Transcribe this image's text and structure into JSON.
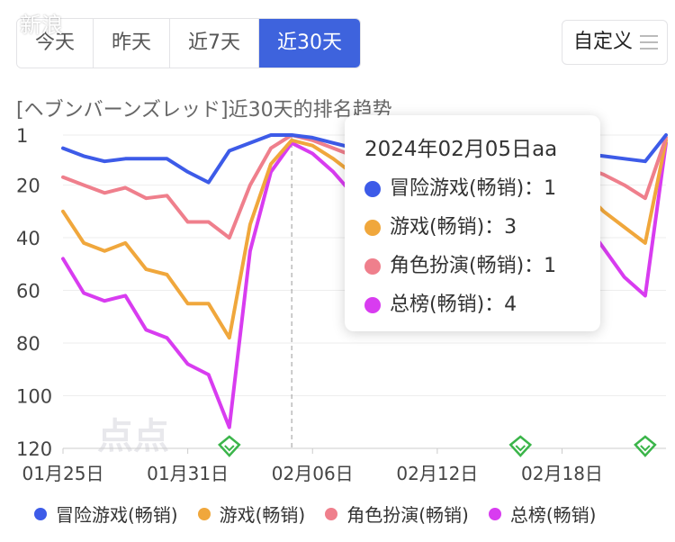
{
  "tabs": [
    "今天",
    "昨天",
    "近7天",
    "近30天"
  ],
  "active_tab": 3,
  "custom_button": "自定义",
  "chart_title": "[ヘブンバーンズレッド]近30天的排名趋势",
  "watermark": "新浪",
  "logo_text": "点点",
  "tooltip": {
    "date": "2024年02月05日aa",
    "rows": [
      {
        "label": "冒险游戏(畅销)：",
        "value": "1",
        "color": "#3d5be8"
      },
      {
        "label": "游戏(畅销)：",
        "value": "3",
        "color": "#f0a73c"
      },
      {
        "label": "角色扮演(畅销)：",
        "value": "1",
        "color": "#ef7f8c"
      },
      {
        "label": "总榜(畅销)：",
        "value": "4",
        "color": "#d83cf0"
      }
    ]
  },
  "chart_data": {
    "type": "line",
    "title": "[ヘブンバーンズレッド]近30天的排名趋势",
    "x": [
      "01月25日",
      "01月26日",
      "01月27日",
      "01月28日",
      "01月29日",
      "01月30日",
      "01月31日",
      "02月01日",
      "02月02日",
      "02月03日",
      "02月04日",
      "02月05日",
      "02月06日",
      "02月07日",
      "02月08日",
      "02月09日",
      "02月10日",
      "02月11日",
      "02月12日",
      "02月13日",
      "02月14日",
      "02月15日",
      "02月16日",
      "02月17日",
      "02月18日",
      "02月19日",
      "02月20日",
      "02月21日",
      "02月22日",
      "02月23日"
    ],
    "x_tick_labels": [
      "01月25日",
      "01月31日",
      "02月06日",
      "02月12日",
      "02月18日"
    ],
    "y_ticks": [
      1,
      20,
      40,
      60,
      80,
      100,
      120
    ],
    "y_reversed": true,
    "ylim": [
      1,
      120
    ],
    "series": [
      {
        "name": "冒险游戏(畅销)",
        "color": "#3d5be8",
        "values": [
          6,
          9,
          11,
          10,
          10,
          10,
          15,
          19,
          7,
          4,
          1,
          1,
          2,
          4,
          6,
          8,
          9,
          9,
          9,
          8,
          8,
          8,
          8,
          7,
          6,
          8,
          9,
          10,
          11,
          1
        ]
      },
      {
        "name": "游戏(畅销)",
        "color": "#f0a73c",
        "values": [
          30,
          42,
          45,
          42,
          52,
          54,
          65,
          65,
          78,
          35,
          12,
          3,
          5,
          10,
          16,
          20,
          22,
          22,
          21,
          20,
          20,
          19,
          19,
          18,
          16,
          22,
          30,
          36,
          42,
          3
        ]
      },
      {
        "name": "角色扮演(畅销)",
        "color": "#ef7f8c",
        "values": [
          17,
          20,
          23,
          21,
          25,
          24,
          34,
          34,
          40,
          20,
          6,
          1,
          3,
          6,
          9,
          12,
          13,
          13,
          12,
          12,
          12,
          11,
          11,
          10,
          9,
          13,
          16,
          20,
          25,
          2
        ]
      },
      {
        "name": "总榜(畅销)",
        "color": "#d83cf0",
        "values": [
          48,
          61,
          64,
          62,
          75,
          78,
          88,
          92,
          112,
          45,
          15,
          4,
          8,
          15,
          24,
          30,
          34,
          34,
          33,
          32,
          32,
          31,
          30,
          28,
          26,
          33,
          44,
          55,
          62,
          4
        ]
      }
    ],
    "hover_index": 11,
    "event_marker_indices": [
      8,
      22,
      28
    ]
  },
  "legend": [
    "冒险游戏(畅销)",
    "游戏(畅销)",
    "角色扮演(畅销)",
    "总榜(畅销)"
  ]
}
